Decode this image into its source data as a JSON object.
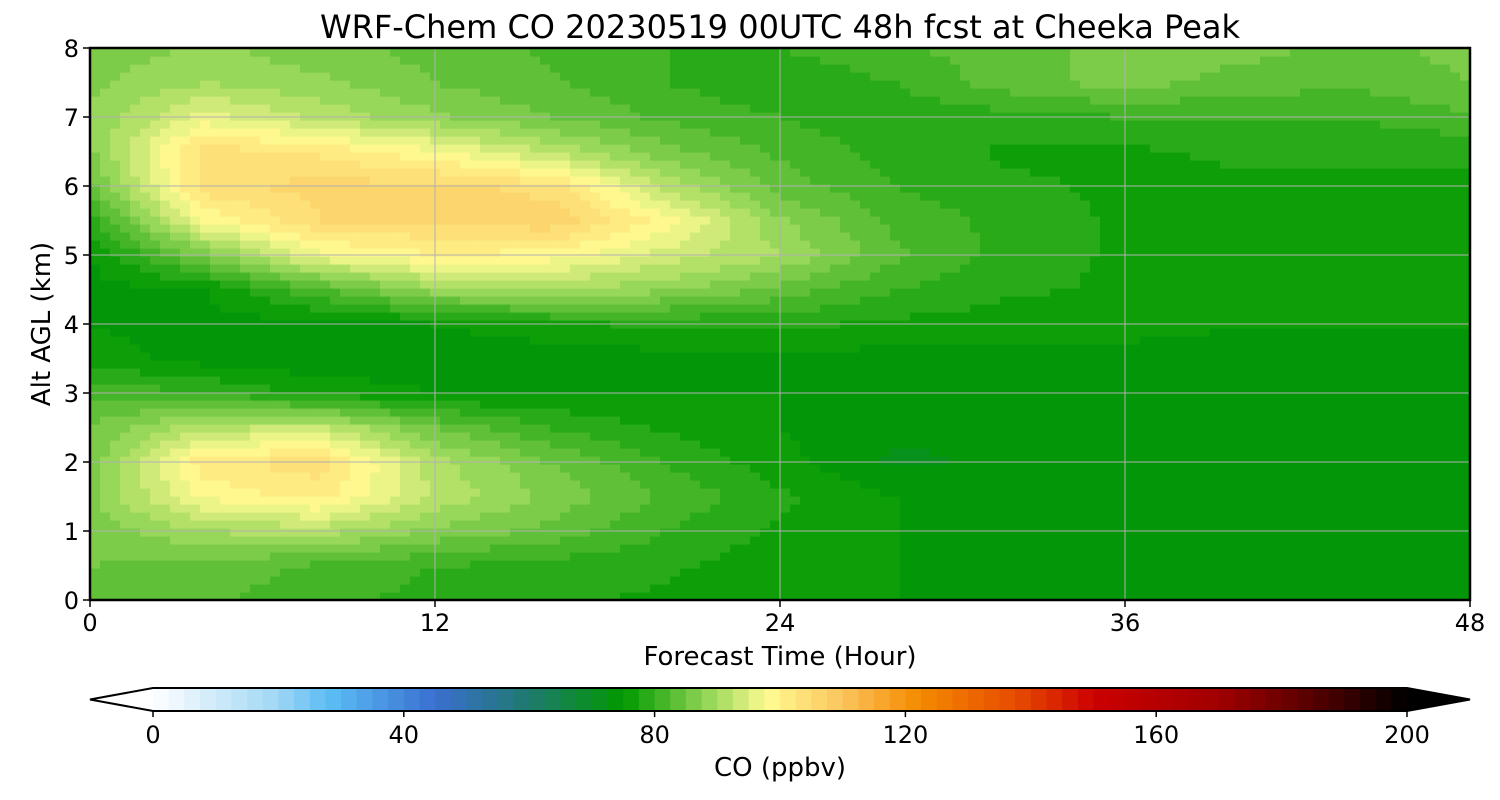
{
  "chart_data": {
    "type": "heatmap",
    "title": "WRF-Chem CO  20230519 00UTC 48h fcst at Cheeka Peak",
    "xlabel": "Forecast Time (Hour)",
    "ylabel": "Alt AGL (km)",
    "xlim": [
      0,
      48
    ],
    "ylim": [
      0,
      8
    ],
    "xticks": [
      0,
      12,
      24,
      36,
      48
    ],
    "yticks": [
      0,
      1,
      2,
      3,
      4,
      5,
      6,
      7,
      8
    ],
    "grid": true,
    "colorbar": {
      "label": "CO  (ppbv)",
      "orientation": "horizontal",
      "position": "bottom",
      "extend": "both",
      "range": [
        0,
        200
      ],
      "ticks": [
        0,
        40,
        80,
        120,
        160,
        200
      ],
      "stops": [
        {
          "v": 0,
          "color": "#ffffff"
        },
        {
          "v": 20,
          "color": "#9fd6f5"
        },
        {
          "v": 28,
          "color": "#5bbdf4"
        },
        {
          "v": 45,
          "color": "#3a6fd0"
        },
        {
          "v": 60,
          "color": "#1f7a6e"
        },
        {
          "v": 75,
          "color": "#009900"
        },
        {
          "v": 88,
          "color": "#8fd454"
        },
        {
          "v": 98,
          "color": "#fffb92"
        },
        {
          "v": 110,
          "color": "#fbc45c"
        },
        {
          "v": 122,
          "color": "#f58b00"
        },
        {
          "v": 138,
          "color": "#e64a00"
        },
        {
          "v": 150,
          "color": "#cc0000"
        },
        {
          "v": 170,
          "color": "#a00000"
        },
        {
          "v": 185,
          "color": "#550000"
        },
        {
          "v": 200,
          "color": "#000000"
        }
      ]
    },
    "field": {
      "hours": [
        0,
        4,
        8,
        12,
        16,
        20,
        24,
        28,
        32,
        36,
        40,
        44,
        48
      ],
      "alt_km": [
        0,
        0.5,
        1,
        1.5,
        2,
        2.5,
        3,
        3.5,
        4,
        4.5,
        5,
        5.5,
        6,
        6.5,
        7,
        7.5,
        8
      ],
      "values_ppbv": [
        [
          84,
          83,
          81,
          79,
          78,
          77,
          76,
          75,
          74,
          73,
          73,
          73,
          73
        ],
        [
          85,
          84,
          82,
          80,
          79,
          78,
          76,
          75,
          74,
          73,
          73,
          73,
          73
        ],
        [
          86,
          90,
          91,
          87,
          84,
          80,
          77,
          75,
          74,
          73,
          73,
          73,
          73
        ],
        [
          87,
          98,
          101,
          92,
          87,
          82,
          78,
          75,
          74,
          73,
          73,
          73,
          73
        ],
        [
          86,
          102,
          104,
          91,
          85,
          80,
          76,
          72,
          73,
          73,
          73,
          73,
          73
        ],
        [
          85,
          92,
          93,
          85,
          80,
          77,
          75,
          73,
          73,
          73,
          73,
          73,
          73
        ],
        [
          82,
          80,
          77,
          75,
          75,
          75,
          75,
          74,
          74,
          73,
          73,
          73,
          73
        ],
        [
          76,
          74,
          73,
          73,
          73,
          74,
          74,
          74,
          74,
          74,
          74,
          74,
          74
        ],
        [
          75,
          74,
          74,
          75,
          77,
          78,
          78,
          77,
          76,
          76,
          75,
          75,
          75
        ],
        [
          74,
          75,
          82,
          89,
          90,
          88,
          84,
          80,
          78,
          77,
          76,
          76,
          75
        ],
        [
          75,
          86,
          97,
          100,
          99,
          94,
          90,
          83,
          79,
          77,
          77,
          76,
          76
        ],
        [
          79,
          98,
          105,
          105,
          107,
          99,
          88,
          82,
          79,
          77,
          77,
          77,
          76
        ],
        [
          84,
          104,
          106,
          106,
          104,
          92,
          84,
          80,
          78,
          77,
          77,
          77,
          77
        ],
        [
          87,
          104,
          102,
          98,
          92,
          86,
          82,
          79,
          77,
          77,
          78,
          78,
          78
        ],
        [
          88,
          96,
          92,
          88,
          85,
          82,
          80,
          78,
          79,
          80,
          80,
          80,
          82
        ],
        [
          87,
          90,
          88,
          85,
          83,
          80,
          78,
          80,
          84,
          86,
          84,
          83,
          85
        ],
        [
          86,
          88,
          86,
          84,
          82,
          80,
          80,
          82,
          84,
          86,
          86,
          84,
          86
        ]
      ]
    }
  }
}
